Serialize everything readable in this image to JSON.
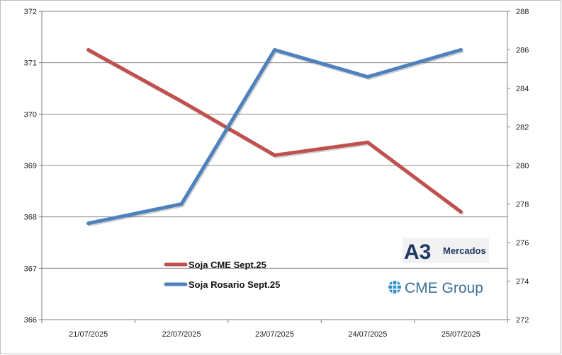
{
  "chart_data": {
    "type": "line",
    "categories": [
      "21/07/2025",
      "22/07/2025",
      "23/07/2025",
      "24/07/2025",
      "25/07/2025"
    ],
    "series": [
      {
        "name": "Soja CME Sept.25",
        "axis": "left",
        "color": "#c0504d",
        "values": [
          371.25,
          370.25,
          369.2,
          369.45,
          368.1
        ]
      },
      {
        "name": "Soja Rosario Sept.25",
        "axis": "right",
        "color": "#4f81bd",
        "values": [
          277.0,
          278.0,
          286.0,
          284.6,
          286.0
        ]
      }
    ],
    "y_left": {
      "range": [
        366,
        372
      ],
      "ticks": [
        "366",
        "367",
        "368",
        "369",
        "370",
        "371",
        "372"
      ]
    },
    "y_right": {
      "range": [
        272,
        288
      ],
      "ticks": [
        "272",
        "274",
        "276",
        "278",
        "280",
        "282",
        "284",
        "286",
        "288"
      ]
    },
    "grid": true,
    "legend_position": "bottom-left"
  },
  "logos": {
    "a3_mark": "A3",
    "a3_text": "Mercados",
    "cme_text": "CME Group",
    "cme_icon": "globe-icon"
  }
}
